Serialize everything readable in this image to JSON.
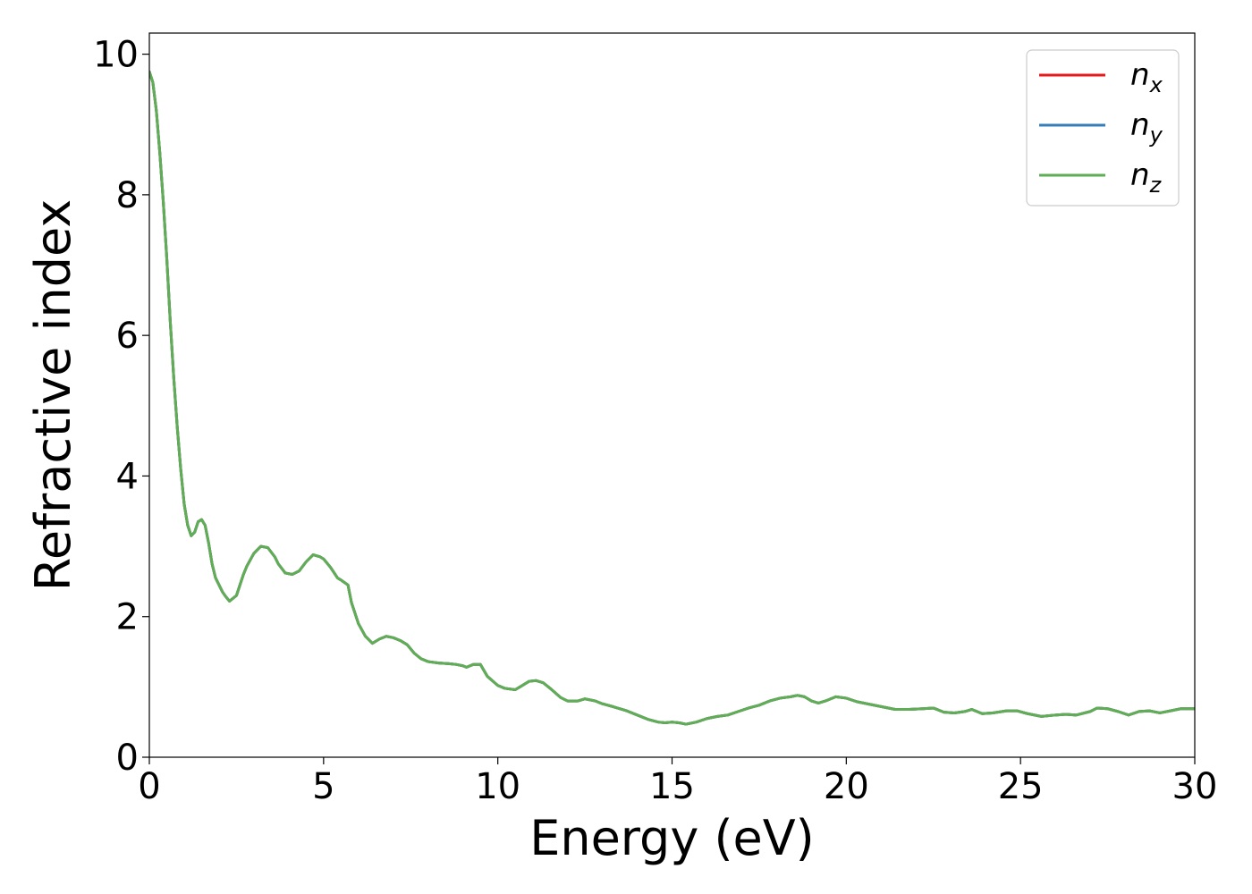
{
  "chart_data": {
    "type": "line",
    "title": "",
    "xlabel": "Energy (eV)",
    "ylabel": "Refractive index",
    "xlim": [
      0,
      30
    ],
    "ylim": [
      0,
      10.3
    ],
    "xticks": [
      0,
      5,
      10,
      15,
      20,
      25,
      30
    ],
    "yticks": [
      0,
      2,
      4,
      6,
      8,
      10
    ],
    "x_tick_labels": [
      "0",
      "5",
      "10",
      "15",
      "20",
      "25",
      "30"
    ],
    "y_tick_labels": [
      "0",
      "2",
      "4",
      "6",
      "8",
      "10"
    ],
    "grid": false,
    "legend_position": "top-right",
    "x": [
      0.0,
      0.1,
      0.2,
      0.3,
      0.4,
      0.5,
      0.6,
      0.7,
      0.8,
      0.9,
      1.0,
      1.1,
      1.2,
      1.3,
      1.4,
      1.5,
      1.6,
      1.7,
      1.8,
      1.9,
      2.0,
      2.1,
      2.2,
      2.3,
      2.5,
      2.7,
      2.8,
      3.0,
      3.2,
      3.4,
      3.6,
      3.7,
      3.9,
      4.1,
      4.3,
      4.5,
      4.7,
      4.9,
      5.0,
      5.2,
      5.4,
      5.5,
      5.7,
      5.8,
      6.0,
      6.2,
      6.4,
      6.6,
      6.8,
      7.0,
      7.2,
      7.4,
      7.6,
      7.8,
      8.0,
      8.3,
      8.6,
      8.8,
      9.0,
      9.1,
      9.3,
      9.5,
      9.7,
      10.0,
      10.2,
      10.5,
      10.7,
      10.9,
      11.1,
      11.3,
      11.5,
      11.8,
      12.0,
      12.3,
      12.5,
      12.8,
      13.0,
      13.3,
      13.7,
      14.0,
      14.3,
      14.6,
      14.8,
      15.0,
      15.2,
      15.4,
      15.7,
      16.0,
      16.3,
      16.6,
      16.9,
      17.2,
      17.5,
      17.8,
      18.1,
      18.4,
      18.6,
      18.8,
      19.0,
      19.2,
      19.4,
      19.7,
      20.0,
      20.3,
      20.6,
      21.0,
      21.4,
      21.8,
      22.2,
      22.5,
      22.8,
      23.1,
      23.4,
      23.6,
      23.9,
      24.2,
      24.6,
      24.9,
      25.2,
      25.6,
      26.0,
      26.3,
      26.6,
      27.0,
      27.2,
      27.5,
      27.8,
      28.1,
      28.4,
      28.7,
      29.0,
      29.3,
      29.6,
      30.0
    ],
    "series": [
      {
        "name": "n_x",
        "color": "#e41a1c",
        "values": [
          9.75,
          9.6,
          9.2,
          8.6,
          7.9,
          7.1,
          6.2,
          5.4,
          4.7,
          4.1,
          3.6,
          3.3,
          3.15,
          3.2,
          3.35,
          3.38,
          3.3,
          3.05,
          2.75,
          2.55,
          2.45,
          2.35,
          2.28,
          2.22,
          2.3,
          2.6,
          2.72,
          2.9,
          3.0,
          2.98,
          2.85,
          2.75,
          2.62,
          2.6,
          2.65,
          2.78,
          2.88,
          2.85,
          2.82,
          2.7,
          2.55,
          2.52,
          2.45,
          2.2,
          1.9,
          1.72,
          1.62,
          1.68,
          1.72,
          1.7,
          1.66,
          1.6,
          1.48,
          1.4,
          1.36,
          1.34,
          1.33,
          1.32,
          1.3,
          1.28,
          1.32,
          1.32,
          1.15,
          1.02,
          0.98,
          0.96,
          1.02,
          1.08,
          1.09,
          1.06,
          0.98,
          0.85,
          0.8,
          0.8,
          0.83,
          0.8,
          0.76,
          0.72,
          0.66,
          0.6,
          0.54,
          0.5,
          0.49,
          0.5,
          0.49,
          0.47,
          0.5,
          0.55,
          0.58,
          0.6,
          0.65,
          0.7,
          0.74,
          0.8,
          0.84,
          0.86,
          0.88,
          0.86,
          0.8,
          0.77,
          0.8,
          0.86,
          0.84,
          0.79,
          0.76,
          0.72,
          0.68,
          0.68,
          0.69,
          0.7,
          0.64,
          0.63,
          0.65,
          0.68,
          0.62,
          0.63,
          0.66,
          0.66,
          0.62,
          0.58,
          0.6,
          0.61,
          0.6,
          0.65,
          0.7,
          0.69,
          0.65,
          0.6,
          0.65,
          0.66,
          0.63,
          0.66,
          0.69,
          0.69
        ]
      },
      {
        "name": "n_y",
        "color": "#377eb8",
        "values": [
          9.75,
          9.6,
          9.2,
          8.6,
          7.9,
          7.1,
          6.2,
          5.4,
          4.7,
          4.1,
          3.6,
          3.3,
          3.15,
          3.2,
          3.35,
          3.38,
          3.3,
          3.05,
          2.75,
          2.55,
          2.45,
          2.35,
          2.28,
          2.22,
          2.3,
          2.6,
          2.72,
          2.9,
          3.0,
          2.98,
          2.85,
          2.75,
          2.62,
          2.6,
          2.65,
          2.78,
          2.88,
          2.85,
          2.82,
          2.7,
          2.55,
          2.52,
          2.45,
          2.2,
          1.9,
          1.72,
          1.62,
          1.68,
          1.72,
          1.7,
          1.66,
          1.6,
          1.48,
          1.4,
          1.36,
          1.34,
          1.33,
          1.32,
          1.3,
          1.28,
          1.32,
          1.32,
          1.15,
          1.02,
          0.98,
          0.96,
          1.02,
          1.08,
          1.09,
          1.06,
          0.98,
          0.85,
          0.8,
          0.8,
          0.83,
          0.8,
          0.76,
          0.72,
          0.66,
          0.6,
          0.54,
          0.5,
          0.49,
          0.5,
          0.49,
          0.47,
          0.5,
          0.55,
          0.58,
          0.6,
          0.65,
          0.7,
          0.74,
          0.8,
          0.84,
          0.86,
          0.88,
          0.86,
          0.8,
          0.77,
          0.8,
          0.86,
          0.84,
          0.79,
          0.76,
          0.72,
          0.68,
          0.68,
          0.69,
          0.7,
          0.64,
          0.63,
          0.65,
          0.68,
          0.62,
          0.63,
          0.66,
          0.66,
          0.62,
          0.58,
          0.6,
          0.61,
          0.6,
          0.65,
          0.7,
          0.69,
          0.65,
          0.6,
          0.65,
          0.66,
          0.63,
          0.66,
          0.69,
          0.69
        ]
      },
      {
        "name": "n_z",
        "color": "#5fae55",
        "values": [
          9.75,
          9.6,
          9.2,
          8.6,
          7.9,
          7.1,
          6.2,
          5.4,
          4.7,
          4.1,
          3.6,
          3.3,
          3.15,
          3.2,
          3.35,
          3.38,
          3.3,
          3.05,
          2.75,
          2.55,
          2.45,
          2.35,
          2.28,
          2.22,
          2.3,
          2.6,
          2.72,
          2.9,
          3.0,
          2.98,
          2.85,
          2.75,
          2.62,
          2.6,
          2.65,
          2.78,
          2.88,
          2.85,
          2.82,
          2.7,
          2.55,
          2.52,
          2.45,
          2.2,
          1.9,
          1.72,
          1.62,
          1.68,
          1.72,
          1.7,
          1.66,
          1.6,
          1.48,
          1.4,
          1.36,
          1.34,
          1.33,
          1.32,
          1.3,
          1.28,
          1.32,
          1.32,
          1.15,
          1.02,
          0.98,
          0.96,
          1.02,
          1.08,
          1.09,
          1.06,
          0.98,
          0.85,
          0.8,
          0.8,
          0.83,
          0.8,
          0.76,
          0.72,
          0.66,
          0.6,
          0.54,
          0.5,
          0.49,
          0.5,
          0.49,
          0.47,
          0.5,
          0.55,
          0.58,
          0.6,
          0.65,
          0.7,
          0.74,
          0.8,
          0.84,
          0.86,
          0.88,
          0.86,
          0.8,
          0.77,
          0.8,
          0.86,
          0.84,
          0.79,
          0.76,
          0.72,
          0.68,
          0.68,
          0.69,
          0.7,
          0.64,
          0.63,
          0.65,
          0.68,
          0.62,
          0.63,
          0.66,
          0.66,
          0.62,
          0.58,
          0.6,
          0.61,
          0.6,
          0.65,
          0.7,
          0.69,
          0.65,
          0.6,
          0.65,
          0.66,
          0.63,
          0.66,
          0.69,
          0.69
        ]
      }
    ],
    "legend": [
      {
        "base": "n",
        "sub": "x",
        "color": "#e41a1c"
      },
      {
        "base": "n",
        "sub": "y",
        "color": "#377eb8"
      },
      {
        "base": "n",
        "sub": "z",
        "color": "#5fae55"
      }
    ]
  }
}
